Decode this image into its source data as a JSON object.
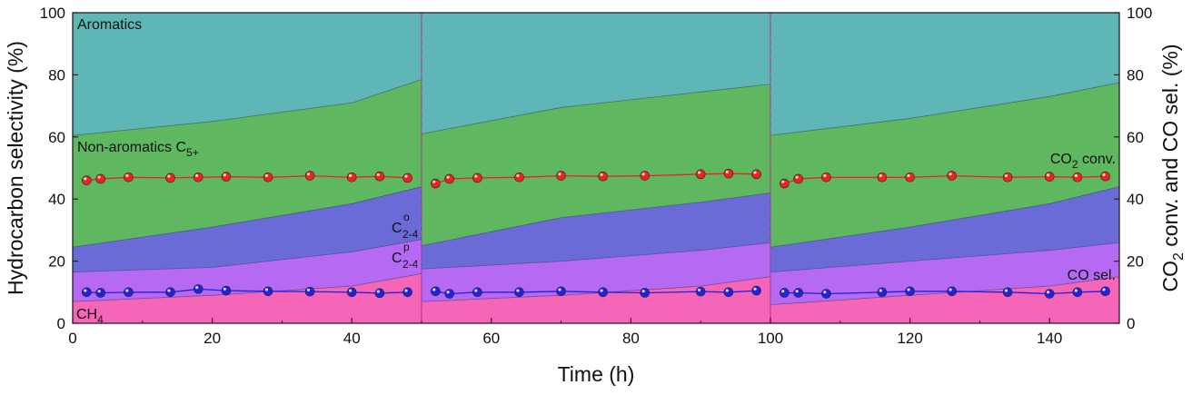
{
  "chart_data": {
    "type": "area",
    "xlabel": "Time (h)",
    "ylabel_left": "Hydrocarbon selectivity (%)",
    "ylabel_right": "CO2 conv. and CO sel. (%)",
    "ylabel_right_parts": {
      "a": "CO",
      "sub": "2",
      "b": " conv. and CO sel. (%)"
    },
    "xlim": [
      0,
      150
    ],
    "ylim": [
      0,
      100
    ],
    "x_ticks": [
      "0",
      "20",
      "40",
      "60",
      "80",
      "100",
      "120",
      "140"
    ],
    "y_ticks_left": [
      "0",
      "20",
      "40",
      "60",
      "80",
      "100"
    ],
    "y_ticks_right": [
      "0",
      "20",
      "40",
      "60",
      "80",
      "100"
    ],
    "dividers_x": [
      50,
      100
    ],
    "colors": {
      "ch4": "#f565b8",
      "c24p": "#b669f2",
      "c24o": "#6b6bd8",
      "c5": "#5fb85f",
      "aromatics": "#5fb6b6",
      "co2_conv": "#ee2222",
      "co_sel": "#2222dd",
      "divider": "#cc3399"
    },
    "stacked_series": [
      {
        "name": "CH4",
        "key": "ch4",
        "segments": [
          {
            "x": [
              0,
              20,
              40,
              50
            ],
            "y": [
              7,
              9,
              12,
              16
            ]
          },
          {
            "x": [
              50,
              70,
              90,
              100
            ],
            "y": [
              7,
              9,
              12,
              15
            ]
          },
          {
            "x": [
              100,
              120,
              140,
              150
            ],
            "y": [
              6,
              9,
              12,
              15
            ]
          }
        ]
      },
      {
        "name": "C2-4 p",
        "key": "c24p",
        "segments": [
          {
            "x": [
              0,
              20,
              40,
              50
            ],
            "y": [
              16.5,
              18,
              23,
              27
            ]
          },
          {
            "x": [
              50,
              70,
              90,
              100
            ],
            "y": [
              17.5,
              20,
              23.5,
              26
            ]
          },
          {
            "x": [
              100,
              120,
              140,
              150
            ],
            "y": [
              16.5,
              20,
              23.5,
              26
            ]
          }
        ]
      },
      {
        "name": "C2-4 o",
        "key": "c24o",
        "segments": [
          {
            "x": [
              0,
              20,
              40,
              50
            ],
            "y": [
              24.5,
              31,
              38.5,
              44
            ]
          },
          {
            "x": [
              50,
              70,
              90,
              100
            ],
            "y": [
              25,
              34,
              39,
              42
            ]
          },
          {
            "x": [
              100,
              120,
              140,
              150
            ],
            "y": [
              24.5,
              31,
              38.5,
              44
            ]
          }
        ]
      },
      {
        "name": "Non-aromatics C5+",
        "key": "c5",
        "segments": [
          {
            "x": [
              0,
              20,
              40,
              50
            ],
            "y": [
              60.5,
              65,
              71,
              78.5
            ]
          },
          {
            "x": [
              50,
              70,
              90,
              100
            ],
            "y": [
              61,
              69.5,
              74.5,
              77
            ]
          },
          {
            "x": [
              100,
              120,
              140,
              150
            ],
            "y": [
              60.5,
              66,
              73,
              77.5
            ]
          }
        ]
      },
      {
        "name": "Aromatics",
        "key": "aromatics",
        "segments": [
          {
            "x": [
              0,
              50
            ],
            "y": [
              100,
              100
            ]
          },
          {
            "x": [
              50,
              100
            ],
            "y": [
              100,
              100
            ]
          },
          {
            "x": [
              100,
              150
            ],
            "y": [
              100,
              100
            ]
          }
        ]
      }
    ],
    "line_series": [
      {
        "name": "CO2 conv.",
        "key": "co2_conv",
        "segments": [
          {
            "x": [
              2,
              4,
              8,
              14,
              18,
              22,
              28,
              34,
              40,
              44,
              48
            ],
            "y": [
              46,
              46.5,
              47,
              46.8,
              47,
              47.2,
              47,
              47.5,
              47,
              47.3,
              46.8
            ]
          },
          {
            "x": [
              52,
              54,
              58,
              64,
              70,
              76,
              82,
              90,
              94,
              98
            ],
            "y": [
              45,
              46.5,
              46.8,
              47,
              47.5,
              47.3,
              47.5,
              48,
              48.2,
              48
            ]
          },
          {
            "x": [
              102,
              104,
              108,
              116,
              120,
              126,
              134,
              140,
              144,
              148
            ],
            "y": [
              45,
              46.5,
              47,
              47,
              47,
              47.5,
              47,
              47.2,
              47,
              47.3
            ]
          }
        ]
      },
      {
        "name": "CO sel.",
        "key": "co_sel",
        "segments": [
          {
            "x": [
              2,
              4,
              8,
              14,
              18,
              22,
              28,
              34,
              40,
              44,
              48
            ],
            "y": [
              10,
              9.8,
              10,
              10,
              11,
              10.5,
              10.3,
              10.2,
              10,
              9.7,
              10
            ]
          },
          {
            "x": [
              52,
              54,
              58,
              64,
              70,
              76,
              82,
              90,
              94,
              98
            ],
            "y": [
              10.3,
              9.5,
              10,
              10,
              10.3,
              10,
              9.8,
              10.2,
              10,
              10.5
            ]
          },
          {
            "x": [
              102,
              104,
              108,
              116,
              120,
              126,
              134,
              140,
              144,
              148
            ],
            "y": [
              9.8,
              9.8,
              9.5,
              10,
              10.3,
              10.3,
              10,
              9.5,
              10,
              10.3
            ]
          }
        ]
      }
    ],
    "labels": {
      "aromatics": "Aromatics",
      "c5_main": "Non-aromatics C",
      "c5_sub": "5+",
      "c24o_main": "C",
      "c24o_sup": "o",
      "c24o_sub": "2-4",
      "c24p_main": "C",
      "c24p_sup": "p",
      "c24p_sub": "2-4",
      "ch4_main": "CH",
      "ch4_sub": "4",
      "co2_main": "CO",
      "co2_sub": "2",
      "co2_rest": " conv.",
      "co_sel": "CO sel."
    }
  }
}
